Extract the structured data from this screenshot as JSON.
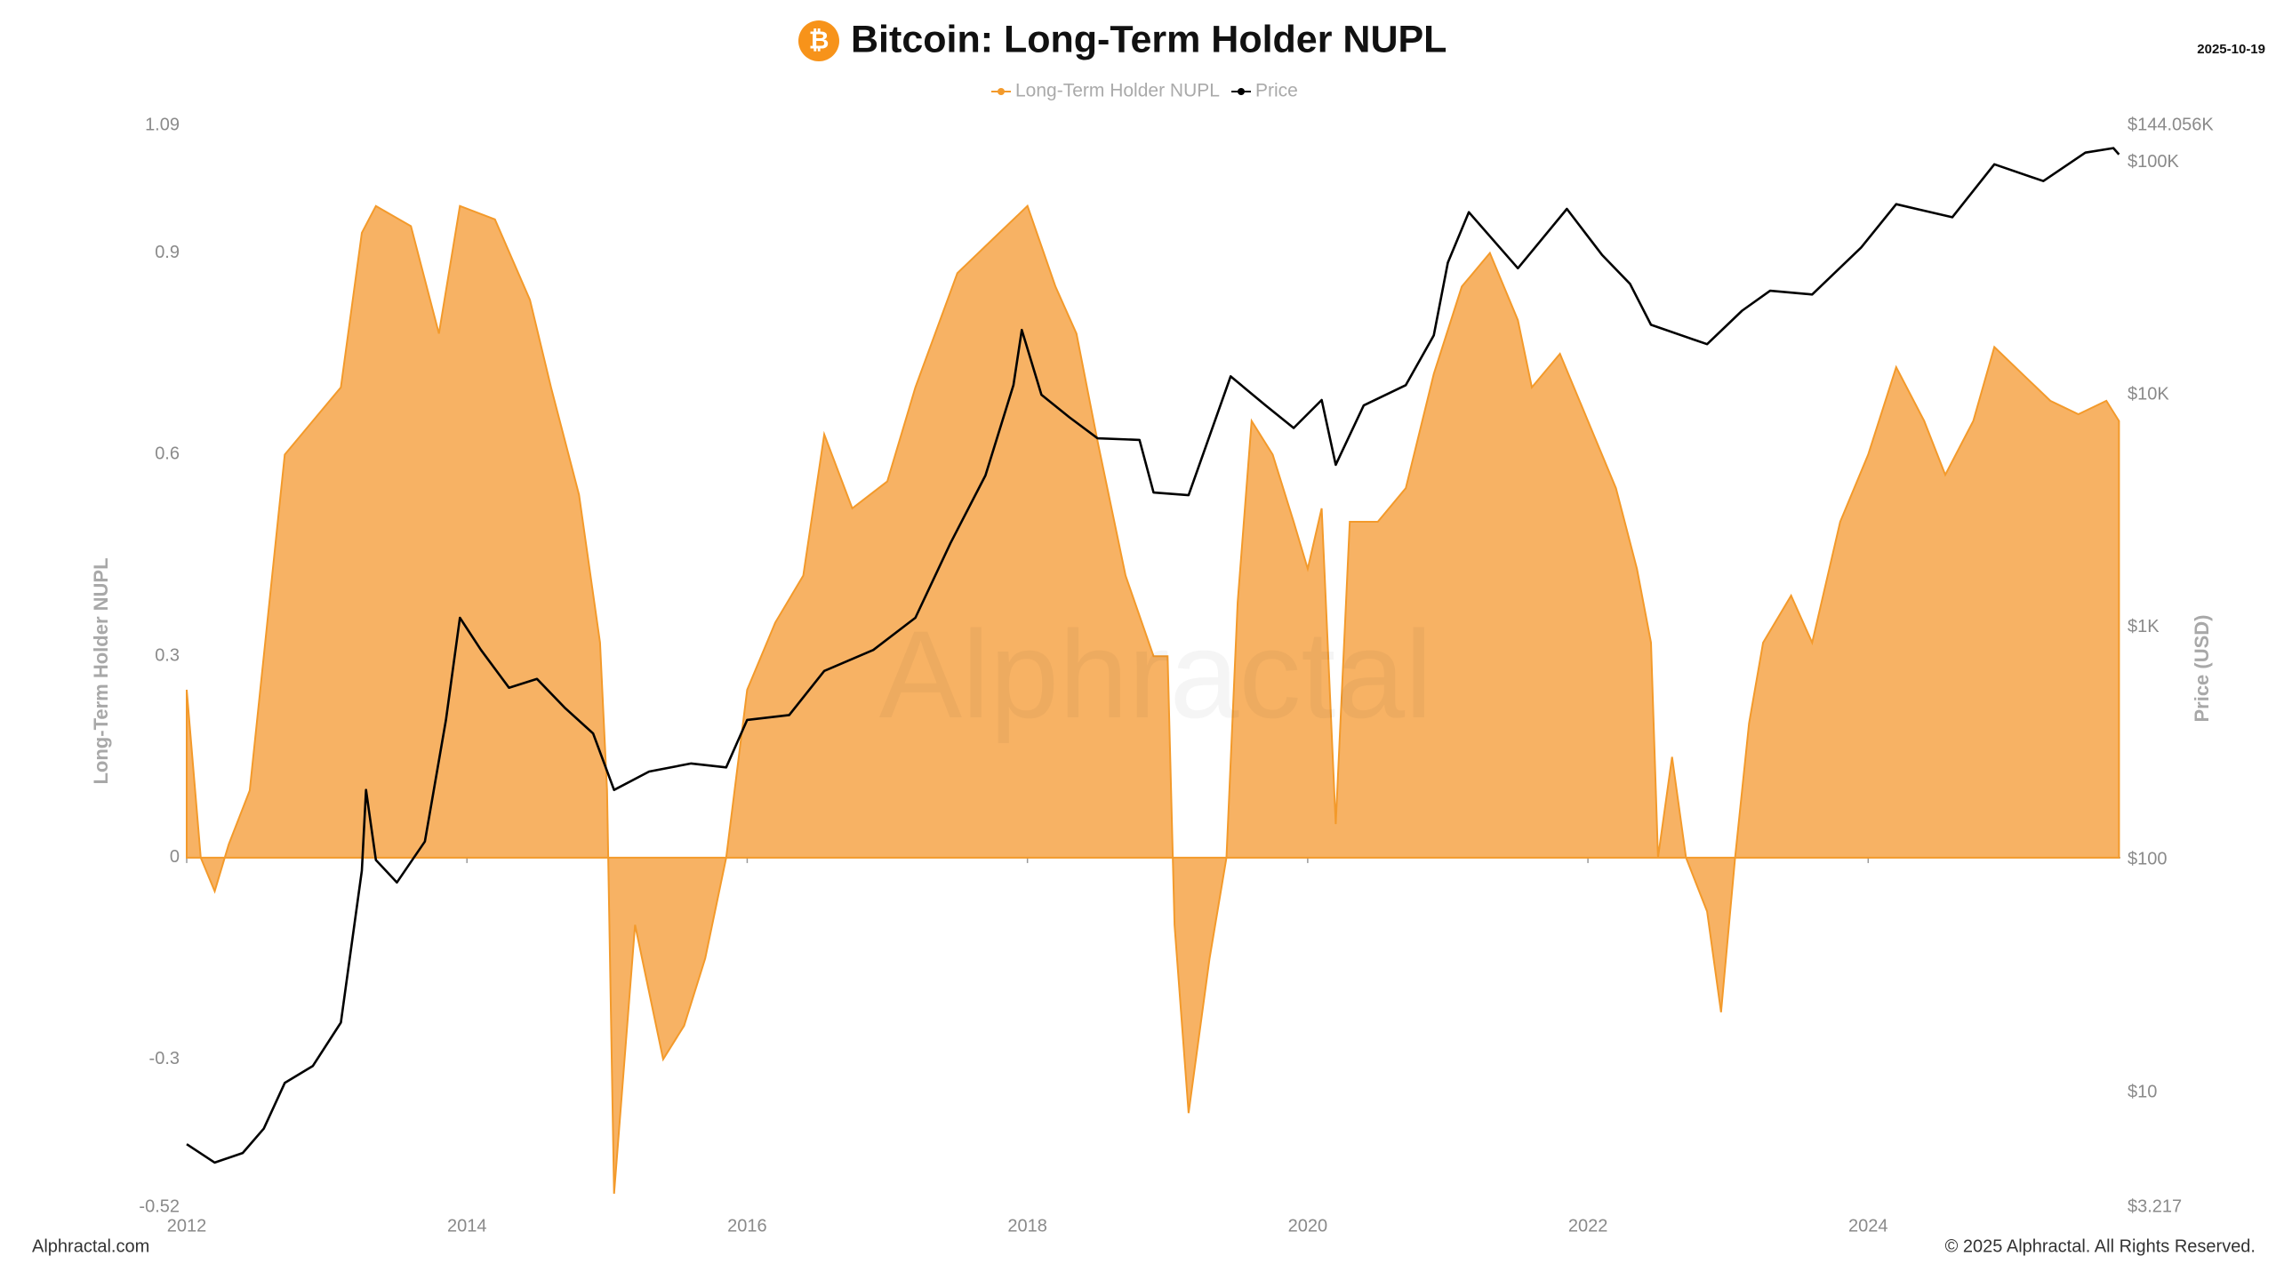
{
  "chart_data": {
    "type": "area-line",
    "title": "Bitcoin: Long-Term Holder NUPL",
    "title_icon": "₿",
    "date": "2025-10-19",
    "y_label": "Long-Term Holder NUPL",
    "y2_label": "Price (USD)",
    "watermark": "Alphractal",
    "source": "Alphractal.com",
    "copyright": "© 2025 Alphractal. All Rights Reserved.",
    "xlim": [
      2012,
      2025.8
    ],
    "xticks": [
      2012,
      2014,
      2016,
      2018,
      2020,
      2022,
      2024
    ],
    "ylim": [
      -0.52,
      1.09
    ],
    "yticks": [
      -0.52,
      -0.3,
      0,
      0.3,
      0.6,
      0.9,
      1.09
    ],
    "y2lim": [
      3.217,
      144056
    ],
    "y2_scale": "log",
    "y2ticks": [
      {
        "value": 3.217,
        "label": "$3.217"
      },
      {
        "value": 10,
        "label": "$10"
      },
      {
        "value": 100,
        "label": "$100"
      },
      {
        "value": 1000,
        "label": "$1K"
      },
      {
        "value": 10000,
        "label": "$10K"
      },
      {
        "value": 100000,
        "label": "$100K"
      },
      {
        "value": 144056,
        "label": "$144.056K"
      }
    ],
    "grid": false,
    "series": [
      {
        "name": "Long-Term Holder NUPL",
        "color": "#f39a2b",
        "fill": "#f7ae5c",
        "kind": "area",
        "x": [
          2012.0,
          2012.1,
          2012.2,
          2012.3,
          2012.45,
          2012.55,
          2012.7,
          2012.9,
          2013.1,
          2013.25,
          2013.35,
          2013.6,
          2013.8,
          2013.95,
          2014.2,
          2014.45,
          2014.6,
          2014.8,
          2014.95,
          2015.0,
          2015.05,
          2015.2,
          2015.4,
          2015.55,
          2015.7,
          2015.85,
          2016.0,
          2016.2,
          2016.4,
          2016.55,
          2016.75,
          2017.0,
          2017.2,
          2017.5,
          2017.8,
          2018.0,
          2018.2,
          2018.35,
          2018.5,
          2018.7,
          2018.9,
          2019.0,
          2019.05,
          2019.15,
          2019.3,
          2019.42,
          2019.5,
          2019.6,
          2019.75,
          2019.9,
          2020.0,
          2020.1,
          2020.2,
          2020.3,
          2020.5,
          2020.7,
          2020.9,
          2021.1,
          2021.3,
          2021.5,
          2021.6,
          2021.8,
          2022.0,
          2022.2,
          2022.35,
          2022.45,
          2022.5,
          2022.6,
          2022.7,
          2022.85,
          2022.95,
          2023.05,
          2023.15,
          2023.25,
          2023.45,
          2023.6,
          2023.8,
          2024.0,
          2024.2,
          2024.4,
          2024.55,
          2024.75,
          2024.9,
          2025.1,
          2025.3,
          2025.5,
          2025.7,
          2025.79
        ],
        "values": [
          0.25,
          0.0,
          -0.05,
          0.02,
          0.1,
          0.3,
          0.6,
          0.65,
          0.7,
          0.93,
          0.97,
          0.94,
          0.78,
          0.97,
          0.95,
          0.83,
          0.7,
          0.54,
          0.32,
          0.1,
          -0.5,
          -0.1,
          -0.3,
          -0.25,
          -0.15,
          0.0,
          0.25,
          0.35,
          0.42,
          0.63,
          0.52,
          0.56,
          0.7,
          0.87,
          0.93,
          0.97,
          0.85,
          0.78,
          0.62,
          0.42,
          0.3,
          0.3,
          -0.1,
          -0.38,
          -0.15,
          0.0,
          0.38,
          0.65,
          0.6,
          0.5,
          0.43,
          0.52,
          0.05,
          0.5,
          0.5,
          0.55,
          0.72,
          0.85,
          0.9,
          0.8,
          0.7,
          0.75,
          0.65,
          0.55,
          0.43,
          0.32,
          0.0,
          0.15,
          0.0,
          -0.08,
          -0.23,
          0.0,
          0.2,
          0.32,
          0.39,
          0.32,
          0.5,
          0.6,
          0.73,
          0.65,
          0.57,
          0.65,
          0.76,
          0.72,
          0.68,
          0.66,
          0.68,
          0.65
        ]
      },
      {
        "name": "Price",
        "color": "#000000",
        "kind": "line",
        "axis": "y2",
        "x": [
          2012.0,
          2012.2,
          2012.4,
          2012.55,
          2012.7,
          2012.9,
          2013.1,
          2013.25,
          2013.28,
          2013.35,
          2013.5,
          2013.7,
          2013.85,
          2013.95,
          2014.1,
          2014.3,
          2014.5,
          2014.7,
          2014.9,
          2015.05,
          2015.3,
          2015.6,
          2015.85,
          2016.0,
          2016.3,
          2016.55,
          2016.9,
          2017.2,
          2017.45,
          2017.7,
          2017.9,
          2017.96,
          2018.1,
          2018.3,
          2018.5,
          2018.8,
          2018.9,
          2019.15,
          2019.45,
          2019.7,
          2019.9,
          2020.1,
          2020.2,
          2020.4,
          2020.7,
          2020.9,
          2021.0,
          2021.15,
          2021.5,
          2021.85,
          2022.1,
          2022.3,
          2022.45,
          2022.85,
          2023.1,
          2023.3,
          2023.6,
          2023.95,
          2024.2,
          2024.6,
          2024.9,
          2025.25,
          2025.55,
          2025.75,
          2025.79
        ],
        "values": [
          6,
          5,
          5.5,
          7,
          11,
          13,
          20,
          90,
          200,
          100,
          80,
          120,
          400,
          1100,
          800,
          550,
          600,
          450,
          350,
          200,
          240,
          260,
          250,
          400,
          420,
          650,
          800,
          1100,
          2300,
          4500,
          11000,
          19000,
          10000,
          8000,
          6500,
          6400,
          3800,
          3700,
          12000,
          9000,
          7200,
          9500,
          5000,
          9000,
          11000,
          18000,
          37000,
          61000,
          35000,
          63000,
          40000,
          30000,
          20000,
          16500,
          23000,
          28000,
          27000,
          43000,
          66000,
          58000,
          98000,
          83000,
          110000,
          115000,
          108000
        ]
      }
    ]
  }
}
